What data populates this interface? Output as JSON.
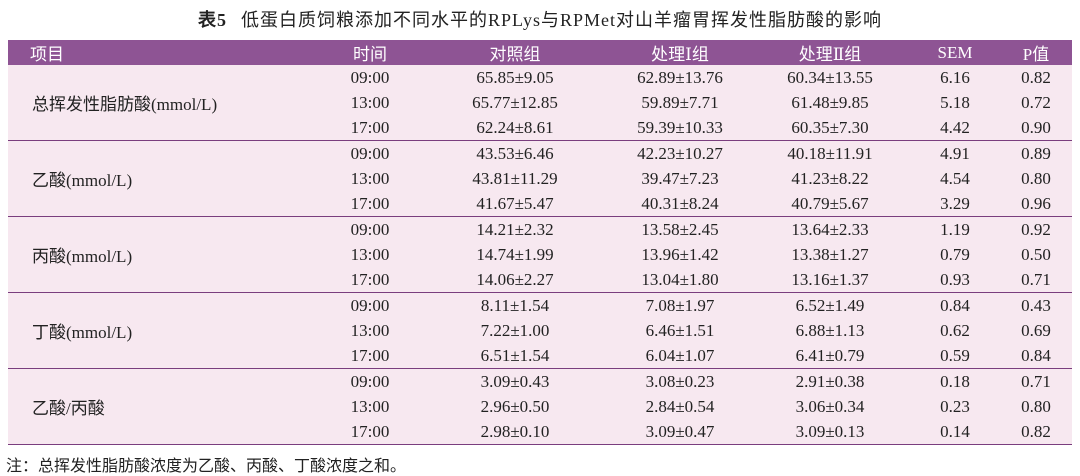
{
  "title": {
    "label": "表5",
    "text": "低蛋白质饲粮添加不同水平的RPLys与RPMet对山羊瘤胃挥发性脂肪酸的影响"
  },
  "table": {
    "header": [
      "项目",
      "时间",
      "对照组",
      "处理Ⅰ组",
      "处理Ⅱ组",
      "SEM",
      "P值"
    ],
    "groups": [
      {
        "label": "总挥发性脂肪酸(mmol/L)",
        "rows": [
          [
            "09:00",
            "65.85±9.05",
            "62.89±13.76",
            "60.34±13.55",
            "6.16",
            "0.82"
          ],
          [
            "13:00",
            "65.77±12.85",
            "59.89±7.71",
            "61.48±9.85",
            "5.18",
            "0.72"
          ],
          [
            "17:00",
            "62.24±8.61",
            "59.39±10.33",
            "60.35±7.30",
            "4.42",
            "0.90"
          ]
        ]
      },
      {
        "label": "乙酸(mmol/L)",
        "rows": [
          [
            "09:00",
            "43.53±6.46",
            "42.23±10.27",
            "40.18±11.91",
            "4.91",
            "0.89"
          ],
          [
            "13:00",
            "43.81±11.29",
            "39.47±7.23",
            "41.23±8.22",
            "4.54",
            "0.80"
          ],
          [
            "17:00",
            "41.67±5.47",
            "40.31±8.24",
            "40.79±5.67",
            "3.29",
            "0.96"
          ]
        ]
      },
      {
        "label": "丙酸(mmol/L)",
        "rows": [
          [
            "09:00",
            "14.21±2.32",
            "13.58±2.45",
            "13.64±2.33",
            "1.19",
            "0.92"
          ],
          [
            "13:00",
            "14.74±1.99",
            "13.96±1.42",
            "13.38±1.27",
            "0.79",
            "0.50"
          ],
          [
            "17:00",
            "14.06±2.27",
            "13.04±1.80",
            "13.16±1.37",
            "0.93",
            "0.71"
          ]
        ]
      },
      {
        "label": "丁酸(mmol/L)",
        "rows": [
          [
            "09:00",
            "8.11±1.54",
            "7.08±1.97",
            "6.52±1.49",
            "0.84",
            "0.43"
          ],
          [
            "13:00",
            "7.22±1.00",
            "6.46±1.51",
            "6.88±1.13",
            "0.62",
            "0.69"
          ],
          [
            "17:00",
            "6.51±1.54",
            "6.04±1.07",
            "6.41±0.79",
            "0.59",
            "0.84"
          ]
        ]
      },
      {
        "label": "乙酸/丙酸",
        "rows": [
          [
            "09:00",
            "3.09±0.43",
            "3.08±0.23",
            "2.91±0.38",
            "0.18",
            "0.71"
          ],
          [
            "13:00",
            "2.96±0.50",
            "2.84±0.54",
            "3.06±0.34",
            "0.23",
            "0.80"
          ],
          [
            "17:00",
            "2.98±0.10",
            "3.09±0.47",
            "3.09±0.13",
            "0.14",
            "0.82"
          ]
        ]
      }
    ]
  },
  "note": "注：总挥发性脂肪酸浓度为乙酸、丙酸、丁酸浓度之和。"
}
